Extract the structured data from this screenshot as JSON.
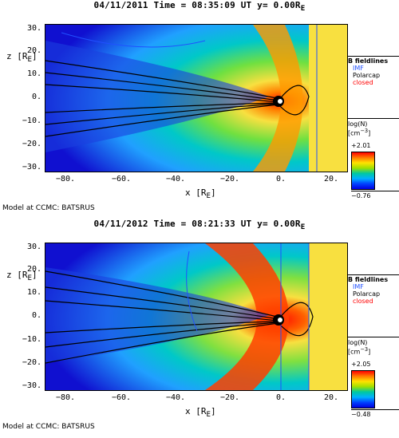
{
  "panels": [
    {
      "title": "04/11/2011 Time = 08:35:09 UT y= 0.00R",
      "title_sub": "E",
      "cbar_max": "+2.01",
      "cbar_min": "−0.76",
      "model": "Model at CCMC: BATSRUS"
    },
    {
      "title": "04/11/2012 Time = 08:21:33 UT y= 0.00R",
      "title_sub": "E",
      "cbar_max": "+2.05",
      "cbar_min": "−0.48",
      "model": "Model at CCMC: BATSRUS"
    }
  ],
  "axes": {
    "y_label": "z [R",
    "y_label_sub": "E",
    "y_label_end": "]",
    "x_label": "x [R",
    "x_label_sub": "E",
    "x_label_end": "]",
    "y_ticks": [
      "30.",
      "20.",
      "10.",
      "0.",
      "−10.",
      "−20.",
      "−30."
    ],
    "x_ticks": [
      "−80.",
      "−60.",
      "−40.",
      "−20.",
      "0.",
      "20."
    ]
  },
  "legend": {
    "title": "B fieldlines",
    "items": [
      {
        "label": "IMF",
        "color": "#2050ff"
      },
      {
        "label": "Polarcap",
        "color": "#000000"
      },
      {
        "label": "closed",
        "color": "#ff0000"
      }
    ]
  },
  "colorbar": {
    "label_line1": "log(N)",
    "label_line2": "[cm",
    "label_sup": "−3",
    "label_end": "]"
  },
  "colors": {
    "blue_dark": "#1010d0",
    "cyan": "#00c0e0",
    "green": "#60e040",
    "yellow": "#f8e040",
    "orange": "#ff8000",
    "red": "#ff2000"
  }
}
